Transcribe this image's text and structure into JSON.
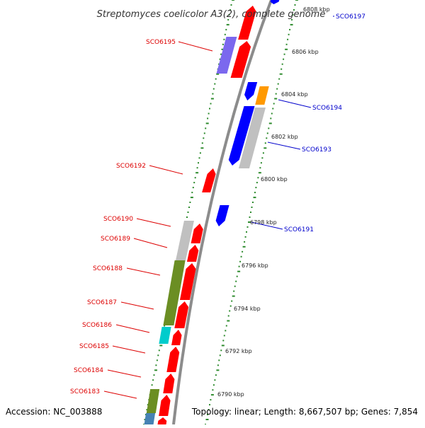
{
  "map": {
    "title": "Streptomyces coelicolor A3(2), complete genome",
    "accession_text": "Accession: NC_003888",
    "summary_text": "Topology: linear; Length: 8,667,507 bp; Genes: 7,854"
  },
  "coordinates": [
    {
      "kbp": 6808,
      "label": "6808 kbp"
    },
    {
      "kbp": 6806,
      "label": "6806 kbp"
    },
    {
      "kbp": 6804,
      "label": "6804 kbp"
    },
    {
      "kbp": 6802,
      "label": "6802 kbp"
    },
    {
      "kbp": 6800,
      "label": "6800 kbp"
    },
    {
      "kbp": 6798,
      "label": "6798 kbp"
    },
    {
      "kbp": 6796,
      "label": "6796 kbp"
    },
    {
      "kbp": 6794,
      "label": "6794 kbp"
    },
    {
      "kbp": 6792,
      "label": "6792 kbp"
    },
    {
      "kbp": 6790,
      "label": "6790 kbp"
    }
  ],
  "gene_labels": [
    {
      "name": "SCO6197",
      "side": "right",
      "color": "#0000cc"
    },
    {
      "name": "SCO6195",
      "side": "left",
      "color": "#dd0000"
    },
    {
      "name": "SCO6194",
      "side": "right",
      "color": "#0000cc"
    },
    {
      "name": "SCO6193",
      "side": "right",
      "color": "#0000cc"
    },
    {
      "name": "SCO6192",
      "side": "left",
      "color": "#dd0000"
    },
    {
      "name": "SCO6191",
      "side": "right",
      "color": "#0000cc"
    },
    {
      "name": "SCO6190",
      "side": "left",
      "color": "#dd0000"
    },
    {
      "name": "SCO6189",
      "side": "left",
      "color": "#dd0000"
    },
    {
      "name": "SCO6188",
      "side": "left",
      "color": "#dd0000"
    },
    {
      "name": "SCO6187",
      "side": "left",
      "color": "#dd0000"
    },
    {
      "name": "SCO6186",
      "side": "left",
      "color": "#dd0000"
    },
    {
      "name": "SCO6185",
      "side": "left",
      "color": "#dd0000"
    },
    {
      "name": "SCO6184",
      "side": "left",
      "color": "#dd0000"
    },
    {
      "name": "SCO6183",
      "side": "left",
      "color": "#dd0000"
    }
  ],
  "colors": {
    "backbone": "#8c8c8c",
    "forward_gene": "#ff0000",
    "reverse_gene": "#0000ff",
    "tick_marks": "#2e8b2e",
    "olive_feature": "#6b8e23",
    "grey_feature": "#c0c0c0",
    "purple_feature": "#7b68ee",
    "orange_feature": "#ff9900",
    "cyan_feature": "#00cccc",
    "steel_feature": "#4682b4"
  }
}
